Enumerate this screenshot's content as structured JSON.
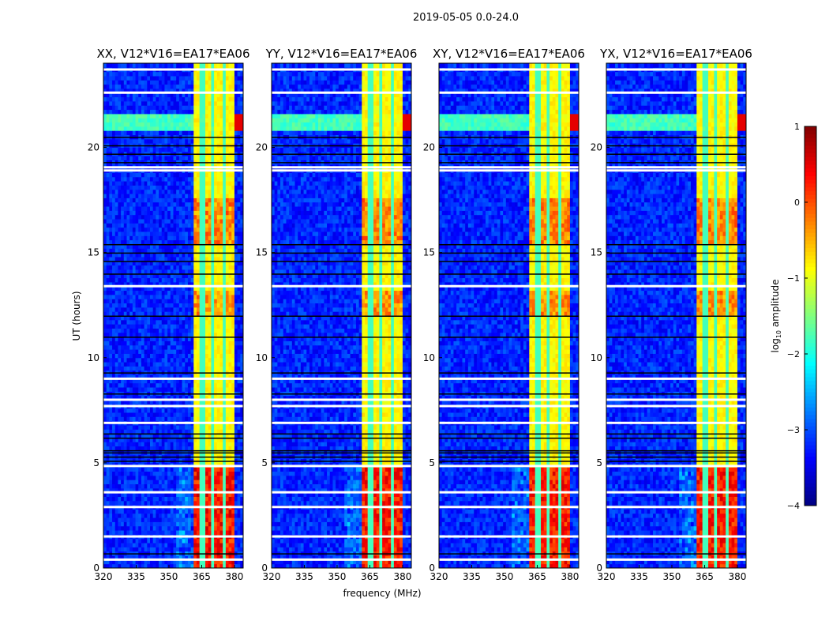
{
  "chart_data": {
    "type": "heatmap",
    "suptitle": "2019-05-05 0.0-24.0",
    "xlabel": "frequency (MHz)",
    "ylabel": "UT (hours)",
    "xlim": [
      320,
      384
    ],
    "ylim": [
      0,
      24
    ],
    "xticks": [
      "320",
      "335",
      "350",
      "365",
      "380"
    ],
    "xtick_values": [
      320,
      335,
      350,
      365,
      380
    ],
    "yticks": [
      "0",
      "5",
      "10",
      "15",
      "20"
    ],
    "ytick_values": [
      0,
      5,
      10,
      15,
      20
    ],
    "panels": [
      {
        "title": "XX, V12*V16=EA17*EA06",
        "strong_scale": 1.0,
        "show_ylabel": true
      },
      {
        "title": "YY, V12*V16=EA17*EA06",
        "strong_scale": 0.9,
        "show_ylabel": false
      },
      {
        "title": "XY, V12*V16=EA17*EA06",
        "strong_scale": 0.85,
        "show_ylabel": false
      },
      {
        "title": "YX, V12*V16=EA17*EA06",
        "strong_scale": 0.85,
        "show_ylabel": false
      }
    ],
    "features": {
      "background_log_amp": -3.2,
      "rfi_band_mhz": [
        361,
        380
      ],
      "rfi_stripe_gaps_mhz": [
        365.3,
        370.3,
        375.2
      ],
      "rfi_base_log_amp": -1.0,
      "strong_periods_hours": [
        [
          0,
          4.8,
          0.4
        ],
        [
          12.0,
          13.2,
          -0.3
        ],
        [
          15.5,
          17.5,
          -0.2
        ]
      ],
      "broadband_rfi_hours": [
        [
          20.9,
          21.5,
          -2.0
        ]
      ],
      "flagged_rows_hours": [
        0.4,
        1.5,
        2.9,
        3.6,
        4.85,
        6.9,
        7.7,
        8.0,
        9.0,
        13.4,
        18.9,
        19.05,
        22.6,
        23.7
      ],
      "bad_rows_hours": [
        0.7,
        5.1,
        5.3,
        5.5,
        5.6,
        6.2,
        6.4,
        8.3,
        9.3,
        11.0,
        12.0,
        14.0,
        14.6,
        15.0,
        15.4,
        19.3,
        19.7,
        20.1,
        20.5
      ]
    },
    "colorbar": {
      "label": "log10 amplitude",
      "label_main": "log",
      "label_sub": "10",
      "label_rest": " amplitude",
      "range": [
        -4,
        1
      ],
      "ticks": [
        "1",
        "0",
        "−1",
        "−2",
        "−3",
        "−4"
      ],
      "tick_values": [
        1,
        0,
        -1,
        -2,
        -3,
        -4
      ],
      "colormap": "jet"
    }
  }
}
